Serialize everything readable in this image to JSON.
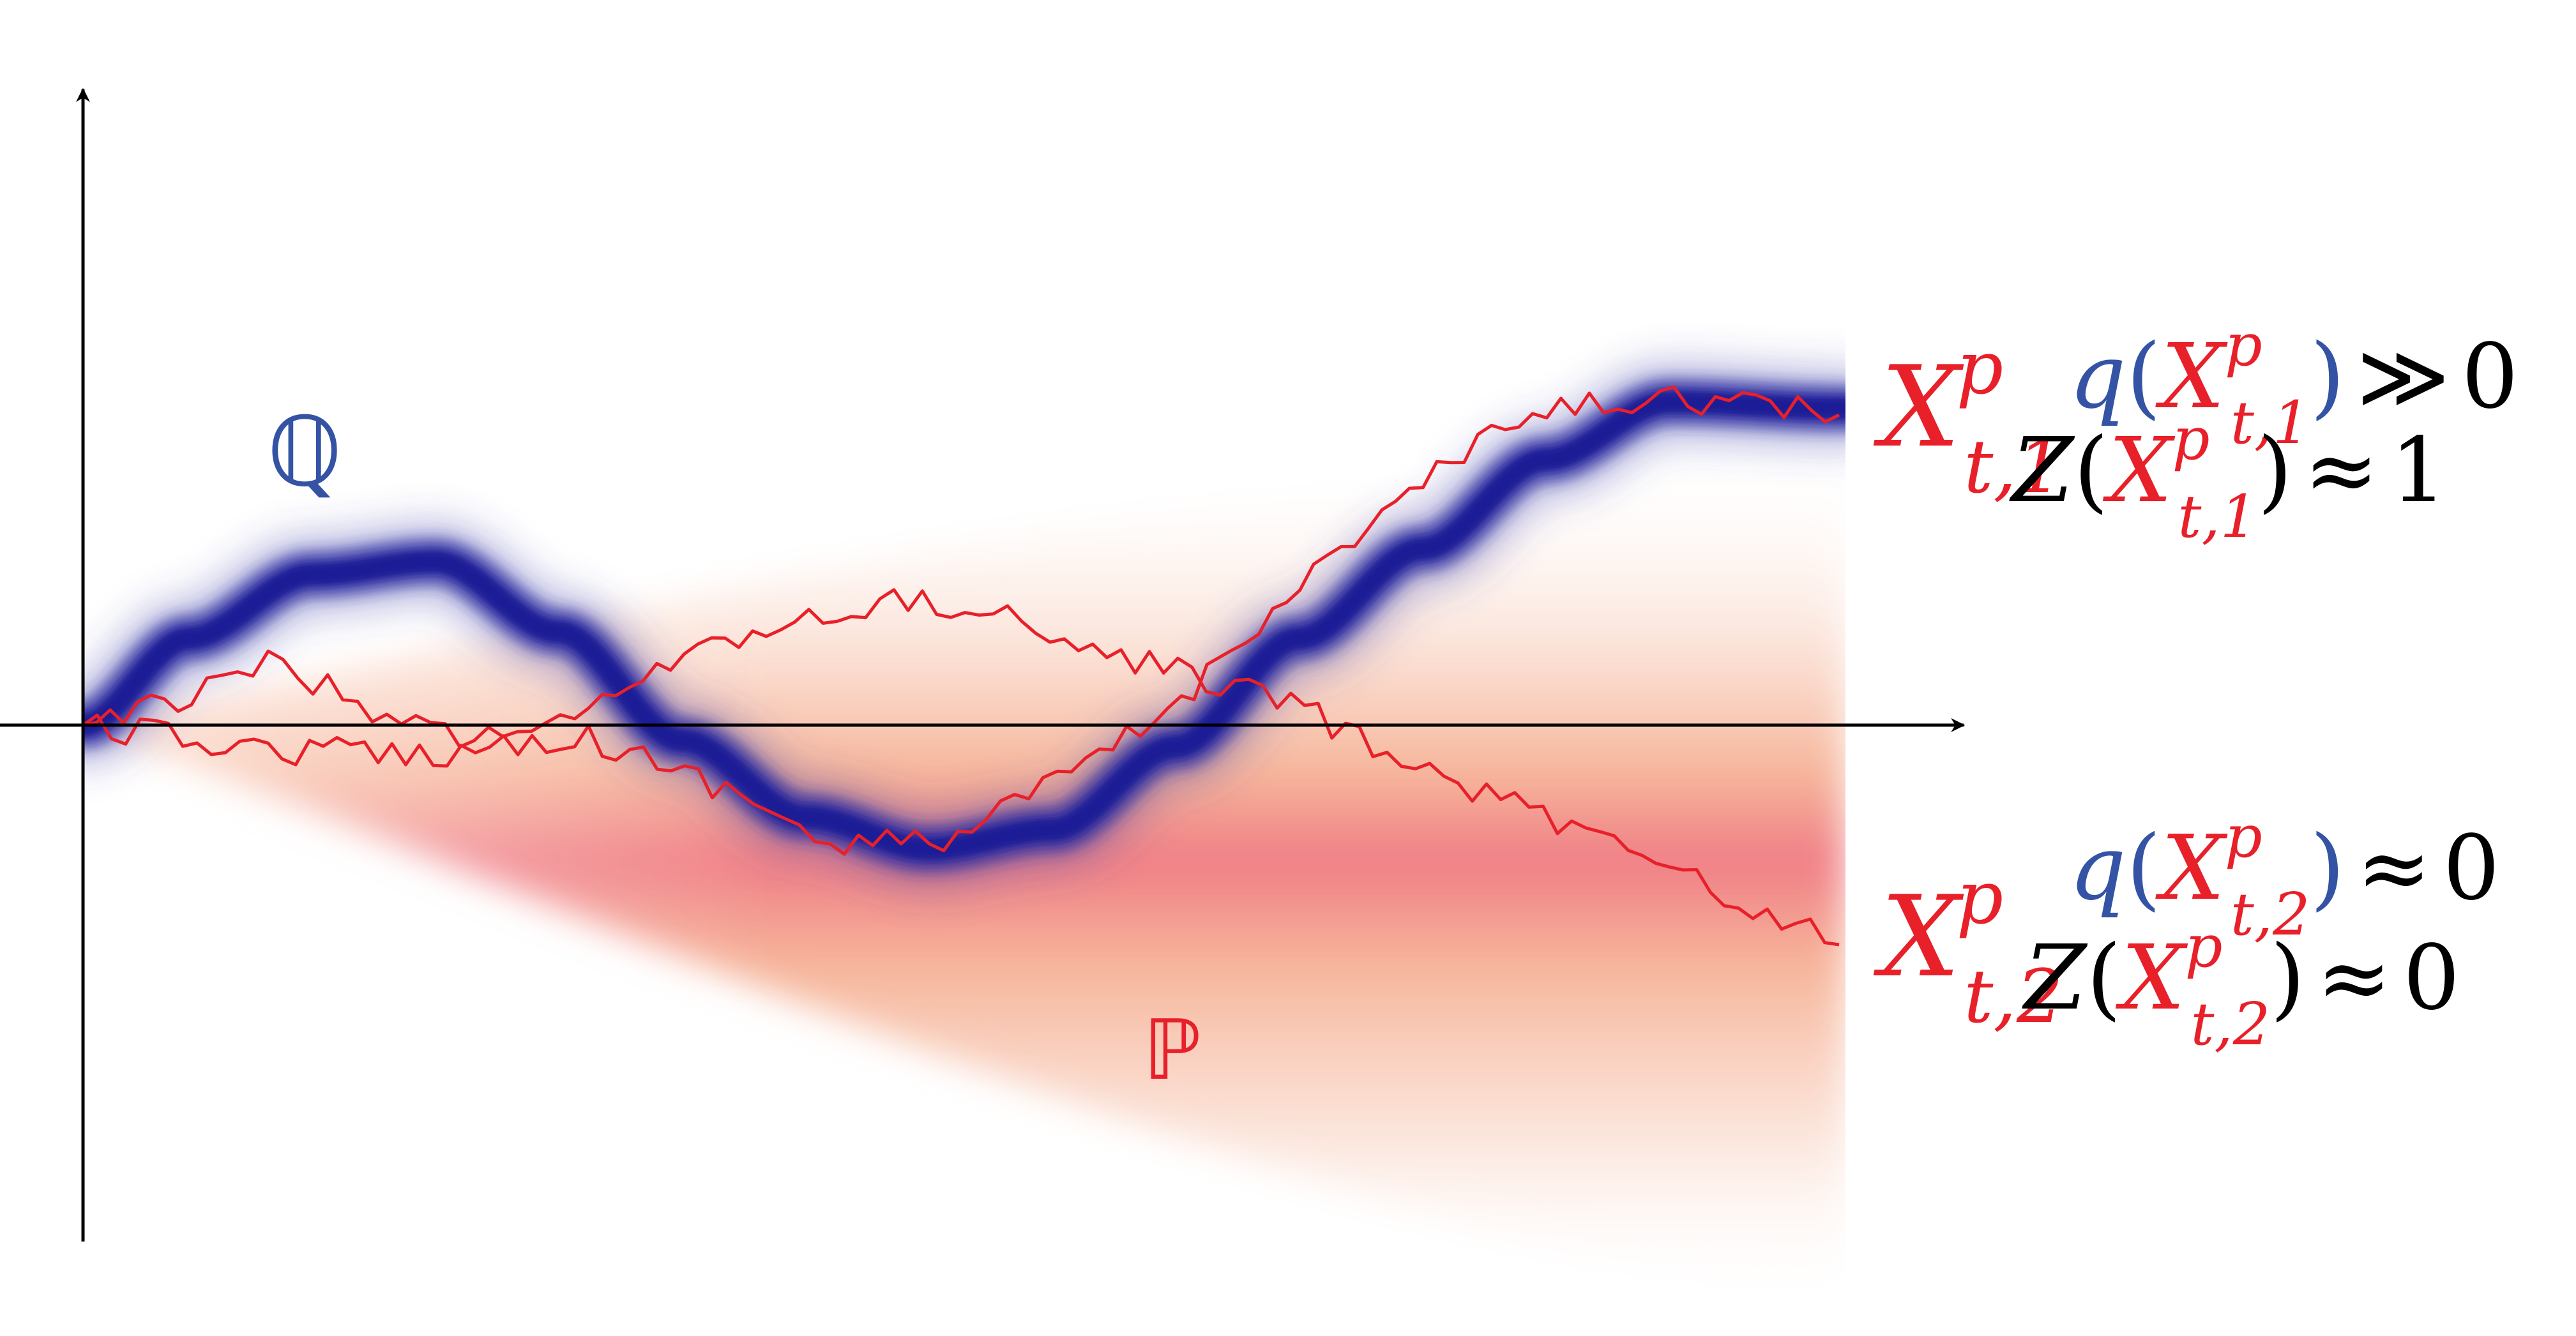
{
  "symbols": {
    "q_measure": "ℚ",
    "p_measure": "ℙ"
  },
  "path_labels": {
    "path1": {
      "base": "X",
      "sup": "p",
      "sub": "t,1"
    },
    "path2": {
      "base": "X",
      "sup": "p",
      "sub": "t,2"
    }
  },
  "annotations": {
    "path1_q": {
      "fn": "q",
      "op": "≫",
      "rhs": "0"
    },
    "path1_z": {
      "fn": "Z",
      "op": "≈",
      "rhs": "1"
    },
    "path2_q": {
      "fn": "q",
      "op": "≈",
      "rhs": "0"
    },
    "path2_z": {
      "fn": "Z",
      "op": "≈",
      "rhs": "0"
    }
  },
  "colors": {
    "q_blue": "#1f1f96",
    "q_label_blue": "#3553a4",
    "p_red": "#e8202a",
    "p_band_pink": "#f07d86",
    "p_band_peach": "#f6b59a",
    "axis": "#000000"
  }
}
